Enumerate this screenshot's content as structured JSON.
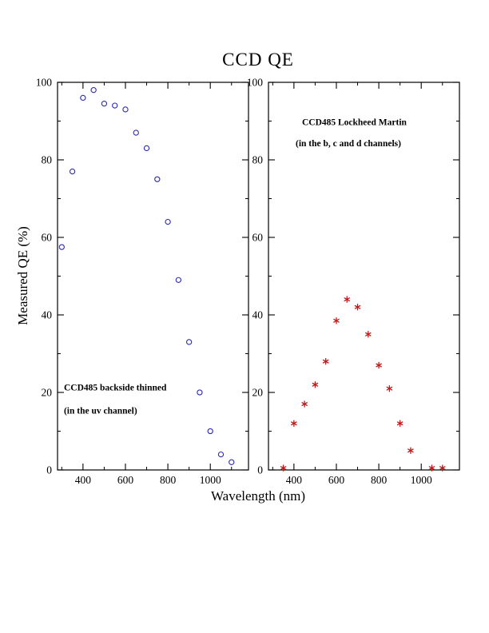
{
  "page": {
    "title": "CCD QE",
    "xlabel": "Wavelength (nm)",
    "ylabel": "Measured QE (%)"
  },
  "chart_data": [
    {
      "type": "scatter",
      "name": "CCD485 backside thinned (uv channel)",
      "marker": "open-circle",
      "color": "#2a2ab4",
      "x": [
        300,
        350,
        400,
        450,
        500,
        550,
        600,
        650,
        700,
        750,
        800,
        850,
        900,
        950,
        1000,
        1050,
        1100
      ],
      "y": [
        57.5,
        77,
        96,
        98,
        94.5,
        94,
        93,
        87,
        83,
        75,
        64,
        49,
        33,
        20,
        10,
        4,
        2
      ],
      "xlim": [
        280,
        1180
      ],
      "ylim": [
        0,
        100
      ],
      "x_ticks": [
        400,
        600,
        800,
        1000
      ],
      "x_minor_ticks": [
        300,
        500,
        700,
        900,
        1100
      ],
      "y_ticks": [
        0,
        20,
        40,
        60,
        80,
        100
      ],
      "y_minor_ticks": [
        10,
        30,
        50,
        70,
        90
      ],
      "annotations": [
        {
          "text": "CCD485 backside thinned",
          "x": 310,
          "y": 20.5
        },
        {
          "text": "(in the uv channel)",
          "x": 310,
          "y": 14.5
        }
      ]
    },
    {
      "type": "scatter",
      "name": "CCD485 Lockheed Martin (b, c and d channels)",
      "marker": "asterisk",
      "color": "#c11818",
      "x": [
        350,
        400,
        450,
        500,
        550,
        600,
        650,
        700,
        750,
        800,
        850,
        900,
        950,
        1050,
        1100
      ],
      "y": [
        0.5,
        12,
        17,
        22,
        28,
        38.5,
        44,
        42,
        35,
        27,
        21,
        12,
        5,
        0.5,
        0.5
      ],
      "xlim": [
        280,
        1180
      ],
      "ylim": [
        0,
        100
      ],
      "x_ticks": [
        400,
        600,
        800,
        1000
      ],
      "x_minor_ticks": [
        300,
        500,
        700,
        900,
        1100
      ],
      "y_ticks": [
        0,
        20,
        40,
        60,
        80,
        100
      ],
      "y_minor_ticks": [
        10,
        30,
        50,
        70,
        90
      ],
      "annotations": [
        {
          "text": "CCD485 Lockheed Martin",
          "x": 438,
          "y": 89
        },
        {
          "text": "(in the b, c and d channels)",
          "x": 408,
          "y": 83.5
        }
      ]
    }
  ]
}
